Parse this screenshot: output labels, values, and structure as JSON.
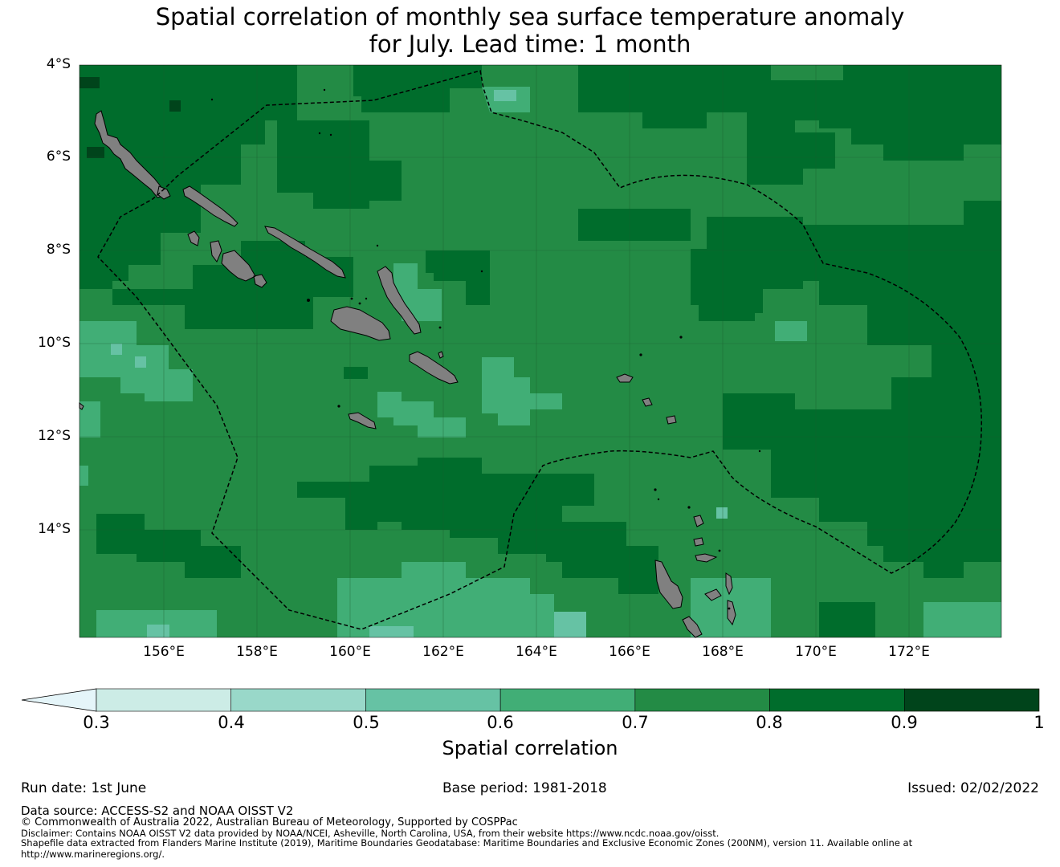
{
  "title_line1": "Spatial correlation of monthly sea surface temperature anomaly",
  "title_line2": "for July. Lead time: 1 month",
  "lat_labels": [
    "4°S",
    "6°S",
    "8°S",
    "10°S",
    "12°S",
    "14°S"
  ],
  "lon_labels": [
    "156°E",
    "158°E",
    "160°E",
    "162°E",
    "164°E",
    "166°E",
    "168°E",
    "170°E",
    "172°E"
  ],
  "colorbar": {
    "ticks": [
      "0.3",
      "0.4",
      "0.5",
      "0.6",
      "0.7",
      "0.8",
      "0.9",
      "1"
    ],
    "colors": [
      "#ccece6",
      "#99d8c9",
      "#66c2a4",
      "#41ae76",
      "#238b45",
      "#006d2c",
      "#00441b"
    ],
    "under_color": "#e5f5f9",
    "label": "Spatial correlation"
  },
  "colors": {
    "land": "#808080",
    "map_base": "#238b45"
  },
  "footer": {
    "run_date": "Run date: 1st June",
    "base_period": "Base period: 1981-2018",
    "issued": "Issued: 02/02/2022",
    "data_source": "Data source: ACCESS-S2 and NOAA OISST V2",
    "copyright": "© Commonwealth of Australia 2022, Australian Bureau of Meteorology, Supported by COSPPac",
    "disclaimer": "Disclaimer: Contains NOAA OISST V2 data provided by NOAA/NCEI, Asheville, North Carolina, USA, from their website https://www.ncdc.noaa.gov/oisst.",
    "shapefile_line1": "Shapefile data extracted from Flanders Marine Institute (2019), Maritime Boundaries Geodatabase: Maritime Boundaries and Exclusive Economic Zones (200NM), version 11. Available online at",
    "shapefile_line2": "http://www.marineregions.org/."
  }
}
